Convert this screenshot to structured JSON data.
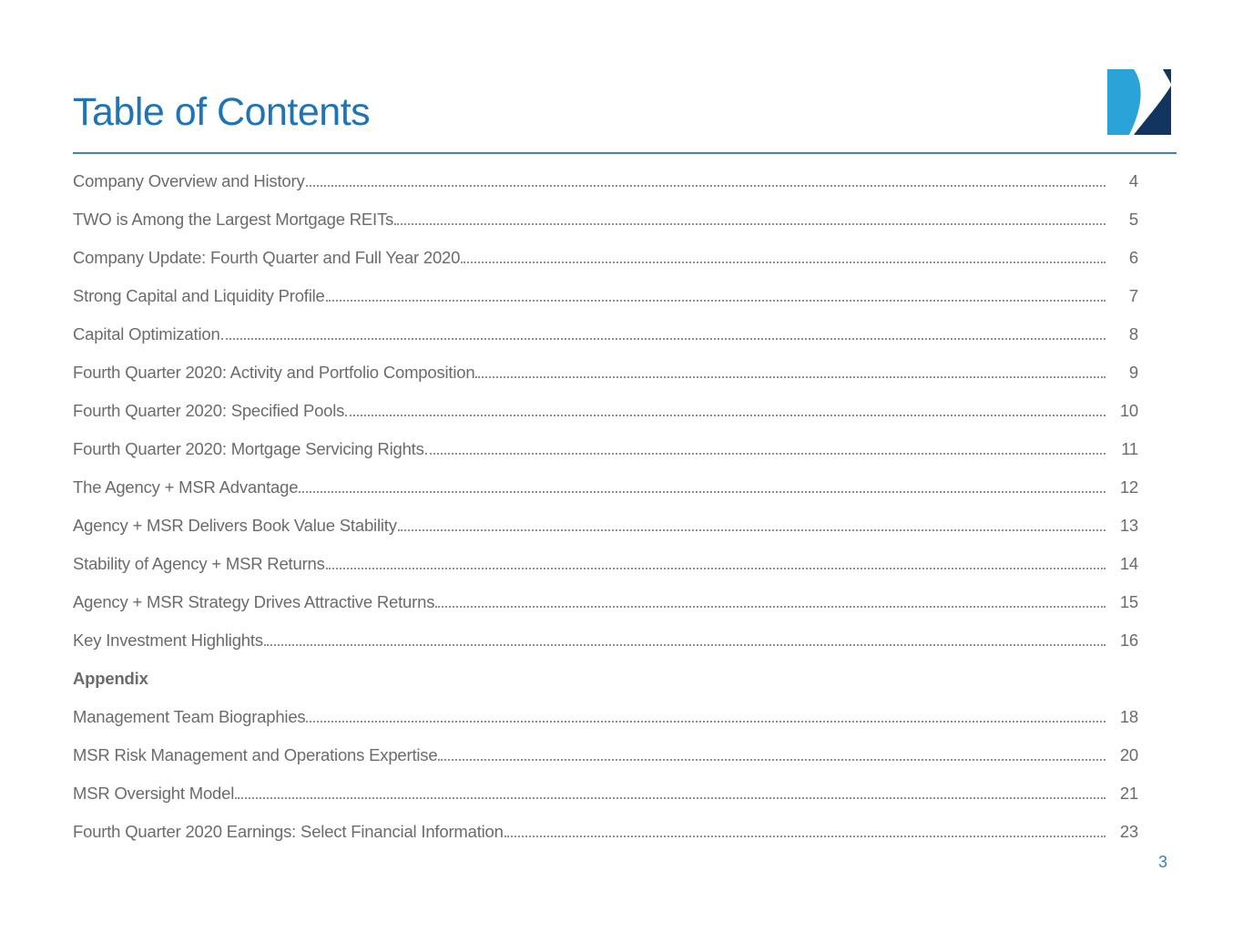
{
  "header": {
    "title": "Table of Contents"
  },
  "logo": {
    "name": "company-logo-swoosh-square",
    "light_blue": "#29A3D8",
    "navy": "#12355F"
  },
  "colors": {
    "title_blue": "#1F74B8",
    "rule_blue": "#4680B5",
    "text_gray": "#6B6B6B",
    "leader_dot_gray": "#8F8F8F",
    "page_number_blue": "#3B7FC0"
  },
  "toc": {
    "sections": [
      {
        "heading": "",
        "entries": [
          {
            "label": "Company Overview and History",
            "page": "4"
          },
          {
            "label": "TWO is Among the Largest Mortgage REITs",
            "page": "5"
          },
          {
            "label": "Company Update: Fourth Quarter and Full Year 2020",
            "page": "6"
          },
          {
            "label": "Strong Capital and Liquidity Profile",
            "page": "7"
          },
          {
            "label": "Capital Optimization",
            "page": "8"
          },
          {
            "label": "Fourth Quarter 2020: Activity and Portfolio Composition",
            "page": "9"
          },
          {
            "label": "Fourth Quarter 2020: Specified Pools",
            "page": "10"
          },
          {
            "label": "Fourth Quarter 2020: Mortgage Servicing Rights",
            "page": "11"
          },
          {
            "label": "The Agency + MSR Advantage",
            "page": "12"
          },
          {
            "label": "Agency + MSR Delivers Book Value Stability",
            "page": "13"
          },
          {
            "label": "Stability of Agency + MSR Returns",
            "page": "14"
          },
          {
            "label": "Agency + MSR Strategy Drives Attractive Returns",
            "page": "15"
          },
          {
            "label": "Key Investment Highlights",
            "page": "16"
          }
        ]
      },
      {
        "heading": "Appendix",
        "entries": [
          {
            "label": "Management Team Biographies",
            "page": "18"
          },
          {
            "label": "MSR Risk Management and Operations Expertise",
            "page": "20"
          },
          {
            "label": "MSR Oversight Model",
            "page": "21"
          },
          {
            "label": "Fourth Quarter 2020 Earnings: Select Financial Information",
            "page": "23"
          }
        ]
      }
    ]
  },
  "footer": {
    "page_number": "3"
  }
}
